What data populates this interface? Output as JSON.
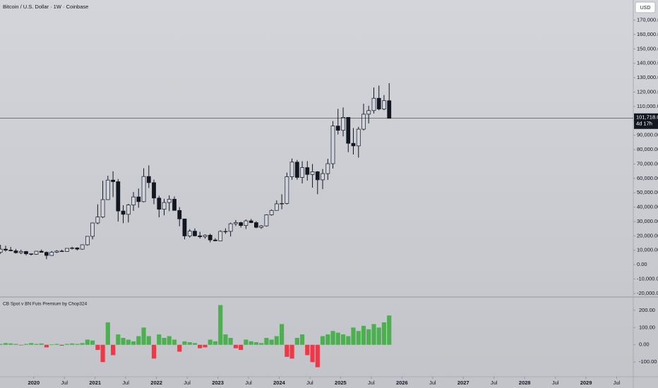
{
  "chart_data": [
    {
      "type": "candlestick",
      "title": "Bitcoin / U.S. Dollar · 1W · Coinbase",
      "currency": "USD",
      "x": [
        2019.458,
        2019.542,
        2019.625,
        2019.708,
        2019.792,
        2019.875,
        2019.958,
        2020.042,
        2020.125,
        2020.208,
        2020.292,
        2020.375,
        2020.458,
        2020.542,
        2020.625,
        2020.708,
        2020.792,
        2020.875,
        2020.958,
        2021.042,
        2021.125,
        2021.208,
        2021.292,
        2021.375,
        2021.458,
        2021.542,
        2021.625,
        2021.708,
        2021.792,
        2021.875,
        2021.958,
        2022.042,
        2022.125,
        2022.208,
        2022.292,
        2022.375,
        2022.458,
        2022.542,
        2022.625,
        2022.708,
        2022.792,
        2022.875,
        2022.958,
        2023.042,
        2023.125,
        2023.208,
        2023.292,
        2023.375,
        2023.458,
        2023.542,
        2023.625,
        2023.708,
        2023.792,
        2023.875,
        2023.958,
        2024.042,
        2024.125,
        2024.208,
        2024.292,
        2024.375,
        2024.458,
        2024.542,
        2024.625,
        2024.708,
        2024.792,
        2024.875,
        2024.958,
        2025.042,
        2025.125,
        2025.208,
        2025.292,
        2025.375,
        2025.458,
        2025.542,
        2025.625,
        2025.708,
        2025.792
      ],
      "open": [
        8550,
        10800,
        10100,
        9600,
        8300,
        9150,
        7550,
        7200,
        9350,
        8550,
        6400,
        8650,
        9450,
        9150,
        11350,
        11650,
        10780,
        13800,
        19700,
        28990,
        33100,
        45200,
        58800,
        57700,
        37300,
        35000,
        41500,
        47100,
        43800,
        61300,
        57000,
        46300,
        38500,
        43200,
        45500,
        37700,
        31800,
        19950,
        23300,
        20050,
        19420,
        20500,
        17150,
        16550,
        23130,
        23150,
        28460,
        29250,
        27200,
        30470,
        29230,
        25940,
        26960,
        34640,
        37720,
        42280,
        42580,
        61130,
        71300,
        60650,
        67500,
        62700,
        64600,
        58970,
        63300,
        70200,
        96400,
        93400,
        102400,
        84350,
        82550,
        94200,
        104600,
        107100,
        115700,
        108200,
        114000
      ],
      "high": [
        13800,
        13200,
        12300,
        10900,
        10400,
        9500,
        7700,
        9600,
        10500,
        9200,
        9500,
        10100,
        10400,
        11450,
        12480,
        12100,
        14100,
        19900,
        29300,
        41900,
        58350,
        61800,
        64900,
        59500,
        41300,
        42300,
        50500,
        52900,
        67000,
        69000,
        59100,
        47900,
        45800,
        48200,
        47400,
        40000,
        31900,
        24700,
        25200,
        22800,
        21100,
        21500,
        18400,
        23900,
        25250,
        29200,
        31000,
        29800,
        31400,
        31800,
        30200,
        27500,
        35000,
        38400,
        44700,
        48900,
        64000,
        73800,
        72800,
        71900,
        72000,
        70000,
        65000,
        66500,
        73600,
        99800,
        108300,
        109300,
        102500,
        95000,
        95800,
        111900,
        110500,
        123200,
        124500,
        117900,
        126200
      ],
      "low": [
        7500,
        9100,
        9300,
        7700,
        7300,
        6500,
        6400,
        6850,
        8400,
        3800,
        6150,
        8100,
        8900,
        8900,
        10500,
        9850,
        10400,
        13200,
        17600,
        28100,
        32300,
        45000,
        47000,
        30000,
        28800,
        29300,
        37400,
        39600,
        43300,
        53300,
        42000,
        32900,
        34300,
        37200,
        37600,
        26700,
        17600,
        18800,
        19600,
        18200,
        18100,
        15500,
        16300,
        16500,
        21400,
        19600,
        26900,
        25800,
        24800,
        28850,
        25300,
        24900,
        26500,
        34100,
        37600,
        38500,
        41900,
        59000,
        59100,
        56500,
        58400,
        53500,
        49000,
        52500,
        58900,
        66800,
        90500,
        89200,
        78200,
        76600,
        74400,
        93300,
        98200,
        105100,
        107300,
        107300,
        101700
      ],
      "close": [
        10800,
        10100,
        9600,
        8300,
        9150,
        7550,
        7200,
        9350,
        8550,
        6400,
        8650,
        9450,
        9150,
        11350,
        11650,
        10780,
        13800,
        19700,
        28990,
        33100,
        45200,
        58800,
        57700,
        37300,
        35000,
        41500,
        47100,
        43800,
        61300,
        57000,
        46300,
        38500,
        43200,
        45500,
        37700,
        31800,
        19950,
        23300,
        20050,
        19420,
        20500,
        17150,
        16550,
        23130,
        23150,
        28460,
        29250,
        27200,
        30470,
        29230,
        25940,
        26960,
        34640,
        37720,
        42280,
        42580,
        61130,
        71300,
        60650,
        67500,
        62700,
        64600,
        58970,
        63300,
        70200,
        96400,
        93400,
        102400,
        84350,
        82550,
        94200,
        104600,
        107100,
        115700,
        108200,
        114000,
        101718.04
      ],
      "up_color": "#d1d4dc",
      "down_color": "#131722",
      "outline_color": "#131722",
      "xlim": [
        2019.45,
        2029.77
      ],
      "xticks": [
        {
          "value": 2020,
          "label": "2020"
        },
        {
          "value": 2020.5,
          "label": "Jul"
        },
        {
          "value": 2021,
          "label": "2021"
        },
        {
          "value": 2021.5,
          "label": "Jul"
        },
        {
          "value": 2022,
          "label": "2022"
        },
        {
          "value": 2022.5,
          "label": "Jul"
        },
        {
          "value": 2023,
          "label": "2023"
        },
        {
          "value": 2023.5,
          "label": "Jul"
        },
        {
          "value": 2024,
          "label": "2024"
        },
        {
          "value": 2024.5,
          "label": "Jul"
        },
        {
          "value": 2025,
          "label": "2025"
        },
        {
          "value": 2025.5,
          "label": "Jul"
        },
        {
          "value": 2026,
          "label": "2026"
        },
        {
          "value": 2026.5,
          "label": "Jul"
        },
        {
          "value": 2027,
          "label": "2027"
        },
        {
          "value": 2027.5,
          "label": "Jul"
        },
        {
          "value": 2028,
          "label": "2028"
        },
        {
          "value": 2028.5,
          "label": "Jul"
        },
        {
          "value": 2029,
          "label": "2029"
        },
        {
          "value": 2029.5,
          "label": "Jul"
        }
      ],
      "ylim": [
        -22000,
        184000
      ],
      "yticks": [
        {
          "value": 170000,
          "label": "170,000.00"
        },
        {
          "value": 160000,
          "label": "160,000.00"
        },
        {
          "value": 150000,
          "label": "150,000.00"
        },
        {
          "value": 140000,
          "label": "140,000.00"
        },
        {
          "value": 130000,
          "label": "130,000.00"
        },
        {
          "value": 120000,
          "label": "120,000.00"
        },
        {
          "value": 110000,
          "label": "110,000.00"
        },
        {
          "value": 100000,
          "label": "100,000.00"
        },
        {
          "value": 90000,
          "label": "90,000.00"
        },
        {
          "value": 80000,
          "label": "80,000.00"
        },
        {
          "value": 70000,
          "label": "70,000.00"
        },
        {
          "value": 60000,
          "label": "60,000.00"
        },
        {
          "value": 50000,
          "label": "50,000.00"
        },
        {
          "value": 40000,
          "label": "40,000.00"
        },
        {
          "value": 30000,
          "label": "30,000.00"
        },
        {
          "value": 20000,
          "label": "20,000.00"
        },
        {
          "value": 10000,
          "label": "10,000.00"
        },
        {
          "value": 0,
          "label": "0.00"
        },
        {
          "value": -10000,
          "label": "-10,000.00"
        },
        {
          "value": -20000,
          "label": "-20,000.00"
        }
      ],
      "last_price": {
        "value": 101718.04,
        "label": "101,718.04"
      },
      "countdown": "4d 17h"
    },
    {
      "type": "bar",
      "title": "CB Spot v BN Futs Premium by Chop324",
      "x": [
        2019.458,
        2019.542,
        2019.625,
        2019.708,
        2019.792,
        2019.875,
        2019.958,
        2020.042,
        2020.125,
        2020.208,
        2020.292,
        2020.375,
        2020.458,
        2020.542,
        2020.625,
        2020.708,
        2020.792,
        2020.875,
        2020.958,
        2021.042,
        2021.125,
        2021.208,
        2021.292,
        2021.375,
        2021.458,
        2021.542,
        2021.625,
        2021.708,
        2021.792,
        2021.875,
        2021.958,
        2022.042,
        2022.125,
        2022.208,
        2022.292,
        2022.375,
        2022.458,
        2022.542,
        2022.625,
        2022.708,
        2022.792,
        2022.875,
        2022.958,
        2023.042,
        2023.125,
        2023.208,
        2023.292,
        2023.375,
        2023.458,
        2023.542,
        2023.625,
        2023.708,
        2023.792,
        2023.875,
        2023.958,
        2024.042,
        2024.125,
        2024.208,
        2024.292,
        2024.375,
        2024.458,
        2024.542,
        2024.625,
        2024.708,
        2024.792,
        2024.875,
        2024.958,
        2025.042,
        2025.125,
        2025.208,
        2025.292,
        2025.375,
        2025.458,
        2025.542,
        2025.625,
        2025.708,
        2025.792
      ],
      "values": [
        5,
        10,
        8,
        5,
        -3,
        5,
        10,
        5,
        8,
        -15,
        3,
        5,
        -5,
        5,
        8,
        5,
        10,
        30,
        25,
        -30,
        -100,
        130,
        -60,
        60,
        40,
        30,
        20,
        50,
        100,
        50,
        -80,
        60,
        40,
        50,
        30,
        -40,
        20,
        15,
        10,
        -20,
        -15,
        30,
        20,
        230,
        60,
        40,
        -20,
        -30,
        30,
        20,
        15,
        10,
        40,
        30,
        50,
        120,
        -70,
        -80,
        40,
        60,
        -60,
        -100,
        -130,
        50,
        60,
        80,
        70,
        60,
        50,
        100,
        80,
        110,
        90,
        120,
        100,
        130,
        170
      ],
      "positive_color": "#4caf50",
      "negative_color": "#f23645",
      "ylim": [
        -185,
        277
      ],
      "yticks": [
        {
          "value": 200,
          "label": "200.00"
        },
        {
          "value": 100,
          "label": "100.00"
        },
        {
          "value": 0,
          "label": "0.00"
        },
        {
          "value": -100,
          "label": "-100.00"
        }
      ]
    }
  ]
}
